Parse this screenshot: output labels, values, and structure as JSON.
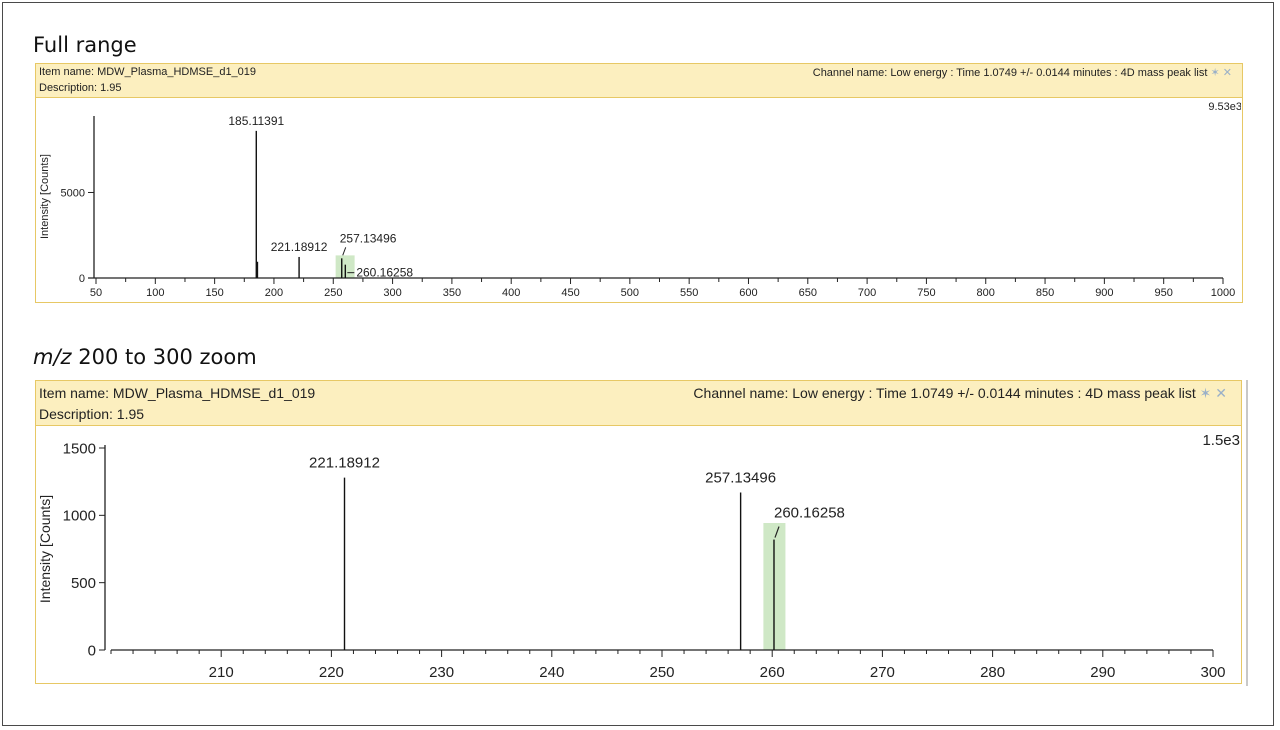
{
  "sections": {
    "full_range_title": "Full range",
    "zoom_title_italic": "m/z",
    "zoom_title_rest": " 200 to 300 zoom"
  },
  "panels": [
    {
      "item_name": "Item name: MDW_Plasma_HDMSE_d1_019",
      "description": "Description: 1.95",
      "channel_name": "Channel name: Low energy : Time 1.0749 +/- 0.0144 minutes : 4D mass peak list",
      "pin_icon": "pin-icon",
      "close_icon": "close-icon"
    },
    {
      "item_name": "Item name: MDW_Plasma_HDMSE_d1_019",
      "description": "Description: 1.95",
      "channel_name": "Channel name: Low energy : Time 1.0749 +/- 0.0144 minutes : 4D mass peak list",
      "pin_icon": "pin-icon",
      "close_icon": "close-icon"
    }
  ],
  "colors": {
    "highlight": "#cfe8c6",
    "header_bg": "#fcefbf",
    "panel_border": "#e7c865",
    "peak": "#111111"
  },
  "chart_data": [
    {
      "type": "bar",
      "subtype": "mass-spectrum-stick",
      "ylabel": "Intensity [Counts]",
      "xlabel": "",
      "max_label": "9.53e3",
      "xlim": [
        50,
        1000
      ],
      "ylim": [
        0,
        9530
      ],
      "xticks": [
        50,
        100,
        150,
        200,
        250,
        300,
        350,
        400,
        450,
        500,
        550,
        600,
        650,
        700,
        750,
        800,
        850,
        900,
        950,
        1000
      ],
      "yticks": [
        0,
        5000
      ],
      "peaks": [
        {
          "mz": 185.11391,
          "intensity": 8600,
          "label": "185.11391"
        },
        {
          "mz": 186.1,
          "intensity": 950,
          "label": ""
        },
        {
          "mz": 221.18912,
          "intensity": 1230,
          "label": "221.18912"
        },
        {
          "mz": 257.13496,
          "intensity": 1150,
          "label": "257.13496"
        },
        {
          "mz": 260.16258,
          "intensity": 780,
          "label": "260.16258"
        }
      ],
      "highlight_range": [
        252,
        268
      ]
    },
    {
      "type": "bar",
      "subtype": "mass-spectrum-stick",
      "ylabel": "Intensity [Counts]",
      "xlabel": "",
      "max_label": "1.5e3",
      "xlim": [
        200,
        300
      ],
      "ylim": [
        0,
        1500
      ],
      "xticks": [
        210,
        220,
        230,
        240,
        250,
        260,
        270,
        280,
        290,
        300
      ],
      "yticks": [
        0,
        500,
        1000,
        1500
      ],
      "peaks": [
        {
          "mz": 221.18912,
          "intensity": 1280,
          "label": "221.18912"
        },
        {
          "mz": 257.13496,
          "intensity": 1170,
          "label": "257.13496"
        },
        {
          "mz": 260.16258,
          "intensity": 820,
          "label": "260.16258"
        }
      ],
      "highlight_range": [
        259.2,
        261.2
      ]
    }
  ]
}
